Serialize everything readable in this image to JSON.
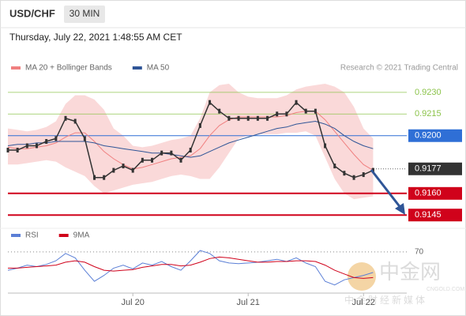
{
  "chart_data": {
    "type": "line",
    "symbol": "USD/CHF",
    "timeframe": "30 MIN",
    "timestamp": "Thursday, July 22, 2021 1:48:55 AM CET",
    "source": "Research © 2021 Trading Central",
    "x": [
      0,
      2,
      4,
      6,
      8,
      10,
      12,
      14,
      16,
      18,
      20,
      22,
      24,
      26,
      28,
      30,
      32,
      34,
      36,
      38,
      40,
      42,
      44,
      46,
      48,
      50,
      52,
      54,
      56,
      58,
      60,
      62,
      64,
      66,
      68,
      70,
      72,
      74,
      76
    ],
    "xlim": [
      0,
      83
    ],
    "xticks": [
      {
        "value": 26,
        "label": "Jul 20"
      },
      {
        "value": 50,
        "label": "Jul 21"
      },
      {
        "value": 74,
        "label": "Jul 22"
      }
    ],
    "ylim": [
      0.9138,
      0.9242
    ],
    "price": {
      "color": "#333333",
      "values": [
        0.919,
        0.919,
        0.9193,
        0.9193,
        0.9196,
        0.9198,
        0.9212,
        0.921,
        0.9198,
        0.9171,
        0.9171,
        0.9176,
        0.9179,
        0.9176,
        0.9183,
        0.9183,
        0.9188,
        0.9188,
        0.9183,
        0.919,
        0.9207,
        0.9223,
        0.9217,
        0.9212,
        0.9212,
        0.9212,
        0.9212,
        0.9212,
        0.9215,
        0.9215,
        0.9223,
        0.9217,
        0.9217,
        0.9193,
        0.9179,
        0.9174,
        0.9171,
        0.9173,
        0.9176
      ]
    },
    "series": [
      {
        "name": "MA 20 + Bollinger Bands",
        "color": "#f08080",
        "values": [
          0.9192,
          0.9191,
          0.9191,
          0.9192,
          0.9193,
          0.9195,
          0.9199,
          0.9202,
          0.9202,
          0.9196,
          0.9189,
          0.9184,
          0.918,
          0.9177,
          0.9178,
          0.918,
          0.9182,
          0.9184,
          0.9185,
          0.9186,
          0.9191,
          0.92,
          0.9207,
          0.9211,
          0.9213,
          0.9213,
          0.9213,
          0.9213,
          0.9213,
          0.9214,
          0.9216,
          0.9217,
          0.9217,
          0.9211,
          0.9203,
          0.9195,
          0.9187,
          0.918,
          0.9176
        ],
        "upper": [
          0.9205,
          0.9204,
          0.9203,
          0.9204,
          0.9206,
          0.921,
          0.9222,
          0.9228,
          0.9228,
          0.9225,
          0.9218,
          0.9205,
          0.92,
          0.9193,
          0.9192,
          0.9193,
          0.9195,
          0.9197,
          0.9198,
          0.92,
          0.9212,
          0.923,
          0.9235,
          0.9236,
          0.923,
          0.9227,
          0.9226,
          0.9226,
          0.9226,
          0.9228,
          0.9232,
          0.9234,
          0.9235,
          0.9236,
          0.9234,
          0.923,
          0.922,
          0.9205,
          0.9198
        ],
        "lower": [
          0.918,
          0.918,
          0.9181,
          0.9182,
          0.9183,
          0.9182,
          0.9178,
          0.9175,
          0.9172,
          0.9165,
          0.916,
          0.9162,
          0.9164,
          0.9166,
          0.9167,
          0.9168,
          0.917,
          0.9172,
          0.9173,
          0.9172,
          0.917,
          0.917,
          0.9178,
          0.9188,
          0.9198,
          0.92,
          0.9201,
          0.9201,
          0.9201,
          0.9202,
          0.9202,
          0.9203,
          0.92,
          0.9185,
          0.917,
          0.916,
          0.9156,
          0.9157,
          0.9158
        ]
      },
      {
        "name": "MA 50",
        "color": "#2f5597",
        "values": [
          0.9193,
          0.9194,
          0.9194,
          0.9195,
          0.9195,
          0.9196,
          0.9196,
          0.9196,
          0.9196,
          0.9195,
          0.9193,
          0.9192,
          0.9191,
          0.919,
          0.9189,
          0.9188,
          0.9188,
          0.9187,
          0.9186,
          0.9185,
          0.9186,
          0.9189,
          0.9192,
          0.9195,
          0.9197,
          0.9199,
          0.9201,
          0.9203,
          0.9205,
          0.9206,
          0.9208,
          0.9209,
          0.921,
          0.9208,
          0.9205,
          0.92,
          0.9196,
          0.9193,
          0.9191
        ]
      }
    ],
    "levels": [
      {
        "value": 0.923,
        "label": "0.9230",
        "color": "#8bc34a",
        "style": "text"
      },
      {
        "value": 0.9215,
        "label": "0.9215",
        "color": "#8bc34a",
        "style": "text"
      },
      {
        "value": 0.92,
        "label": "0.9200",
        "color": "#2f6fd6",
        "style": "box"
      },
      {
        "value": 0.9177,
        "label": "0.9177",
        "color": "#333333",
        "style": "dotted"
      },
      {
        "value": 0.916,
        "label": "0.9160",
        "color": "#d0021b",
        "style": "box"
      },
      {
        "value": 0.9145,
        "label": "0.9145",
        "color": "#d0021b",
        "style": "box"
      }
    ],
    "indicator": {
      "ylim": [
        15,
        85
      ],
      "yticks": [
        70
      ],
      "series": [
        {
          "name": "RSI",
          "color": "#5b7fd6",
          "values": [
            45,
            48,
            52,
            50,
            53,
            58,
            68,
            62,
            45,
            30,
            38,
            48,
            52,
            47,
            55,
            52,
            57,
            50,
            45,
            58,
            72,
            68,
            58,
            55,
            54,
            55,
            56,
            58,
            60,
            57,
            62,
            55,
            50,
            30,
            25,
            32,
            35,
            38,
            42
          ]
        },
        {
          "name": "9MA",
          "color": "#d0021b",
          "values": [
            48,
            48,
            49,
            50,
            51,
            52,
            56,
            58,
            56,
            50,
            45,
            44,
            45,
            46,
            49,
            51,
            53,
            53,
            51,
            52,
            56,
            61,
            63,
            62,
            60,
            58,
            56,
            56,
            57,
            57,
            58,
            58,
            57,
            52,
            45,
            40,
            35,
            34,
            35
          ]
        }
      ]
    },
    "watermark": {
      "name": "中金网",
      "domain": "CNGOLD.COM",
      "tagline": "中金财经新媒体"
    }
  }
}
